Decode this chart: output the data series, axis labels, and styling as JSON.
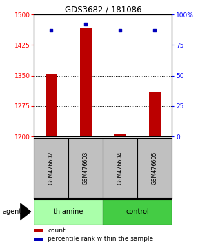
{
  "title": "GDS3682 / 181086",
  "samples": [
    "GSM476602",
    "GSM476603",
    "GSM476604",
    "GSM476605"
  ],
  "groups": [
    "thiamine",
    "thiamine",
    "control",
    "control"
  ],
  "bar_values": [
    1355,
    1468,
    1207,
    1310
  ],
  "percentile_values": [
    87,
    92,
    87,
    87
  ],
  "ylim_left": [
    1200,
    1500
  ],
  "ylim_right": [
    0,
    100
  ],
  "yticks_left": [
    1200,
    1275,
    1350,
    1425,
    1500
  ],
  "yticks_right": [
    0,
    25,
    50,
    75,
    100
  ],
  "bar_color": "#BB0000",
  "dot_color": "#0000BB",
  "background_color": "#ffffff",
  "sample_box_color": "#C0C0C0",
  "thiamine_color": "#AAFFAA",
  "control_color": "#44CC44",
  "legend_count_color": "#BB0000",
  "legend_pct_color": "#0000BB",
  "bar_width": 0.35
}
